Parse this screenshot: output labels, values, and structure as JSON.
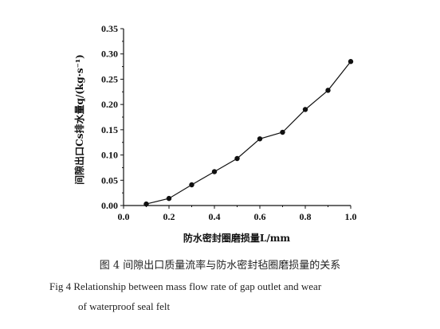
{
  "chart_data": {
    "type": "line",
    "xlabel": "防水密封圈磨损量L/mm",
    "ylabel": "间隙出口Cs排水量q/(kg·s⁻¹)",
    "xlim": [
      0.0,
      1.0
    ],
    "ylim": [
      0.0,
      0.35
    ],
    "xticks": [
      "0.0",
      "0.2",
      "0.4",
      "0.6",
      "0.8",
      "1.0"
    ],
    "yticks": [
      "0.00",
      "0.05",
      "0.10",
      "0.15",
      "0.20",
      "0.25",
      "0.30",
      "0.35"
    ],
    "x": [
      0.1,
      0.2,
      0.3,
      0.4,
      0.5,
      0.6,
      0.7,
      0.8,
      0.9,
      1.0
    ],
    "values": [
      0.003,
      0.014,
      0.041,
      0.067,
      0.093,
      0.132,
      0.145,
      0.19,
      0.228,
      0.285
    ],
    "grid": false
  },
  "caption": {
    "cn": "图 4 间隙出口质量流率与防水密封毡圈磨损量的关系",
    "en_line1": "Fig 4   Relationship between mass flow rate of gap outlet and wear",
    "en_line2": "of waterproof seal felt"
  }
}
